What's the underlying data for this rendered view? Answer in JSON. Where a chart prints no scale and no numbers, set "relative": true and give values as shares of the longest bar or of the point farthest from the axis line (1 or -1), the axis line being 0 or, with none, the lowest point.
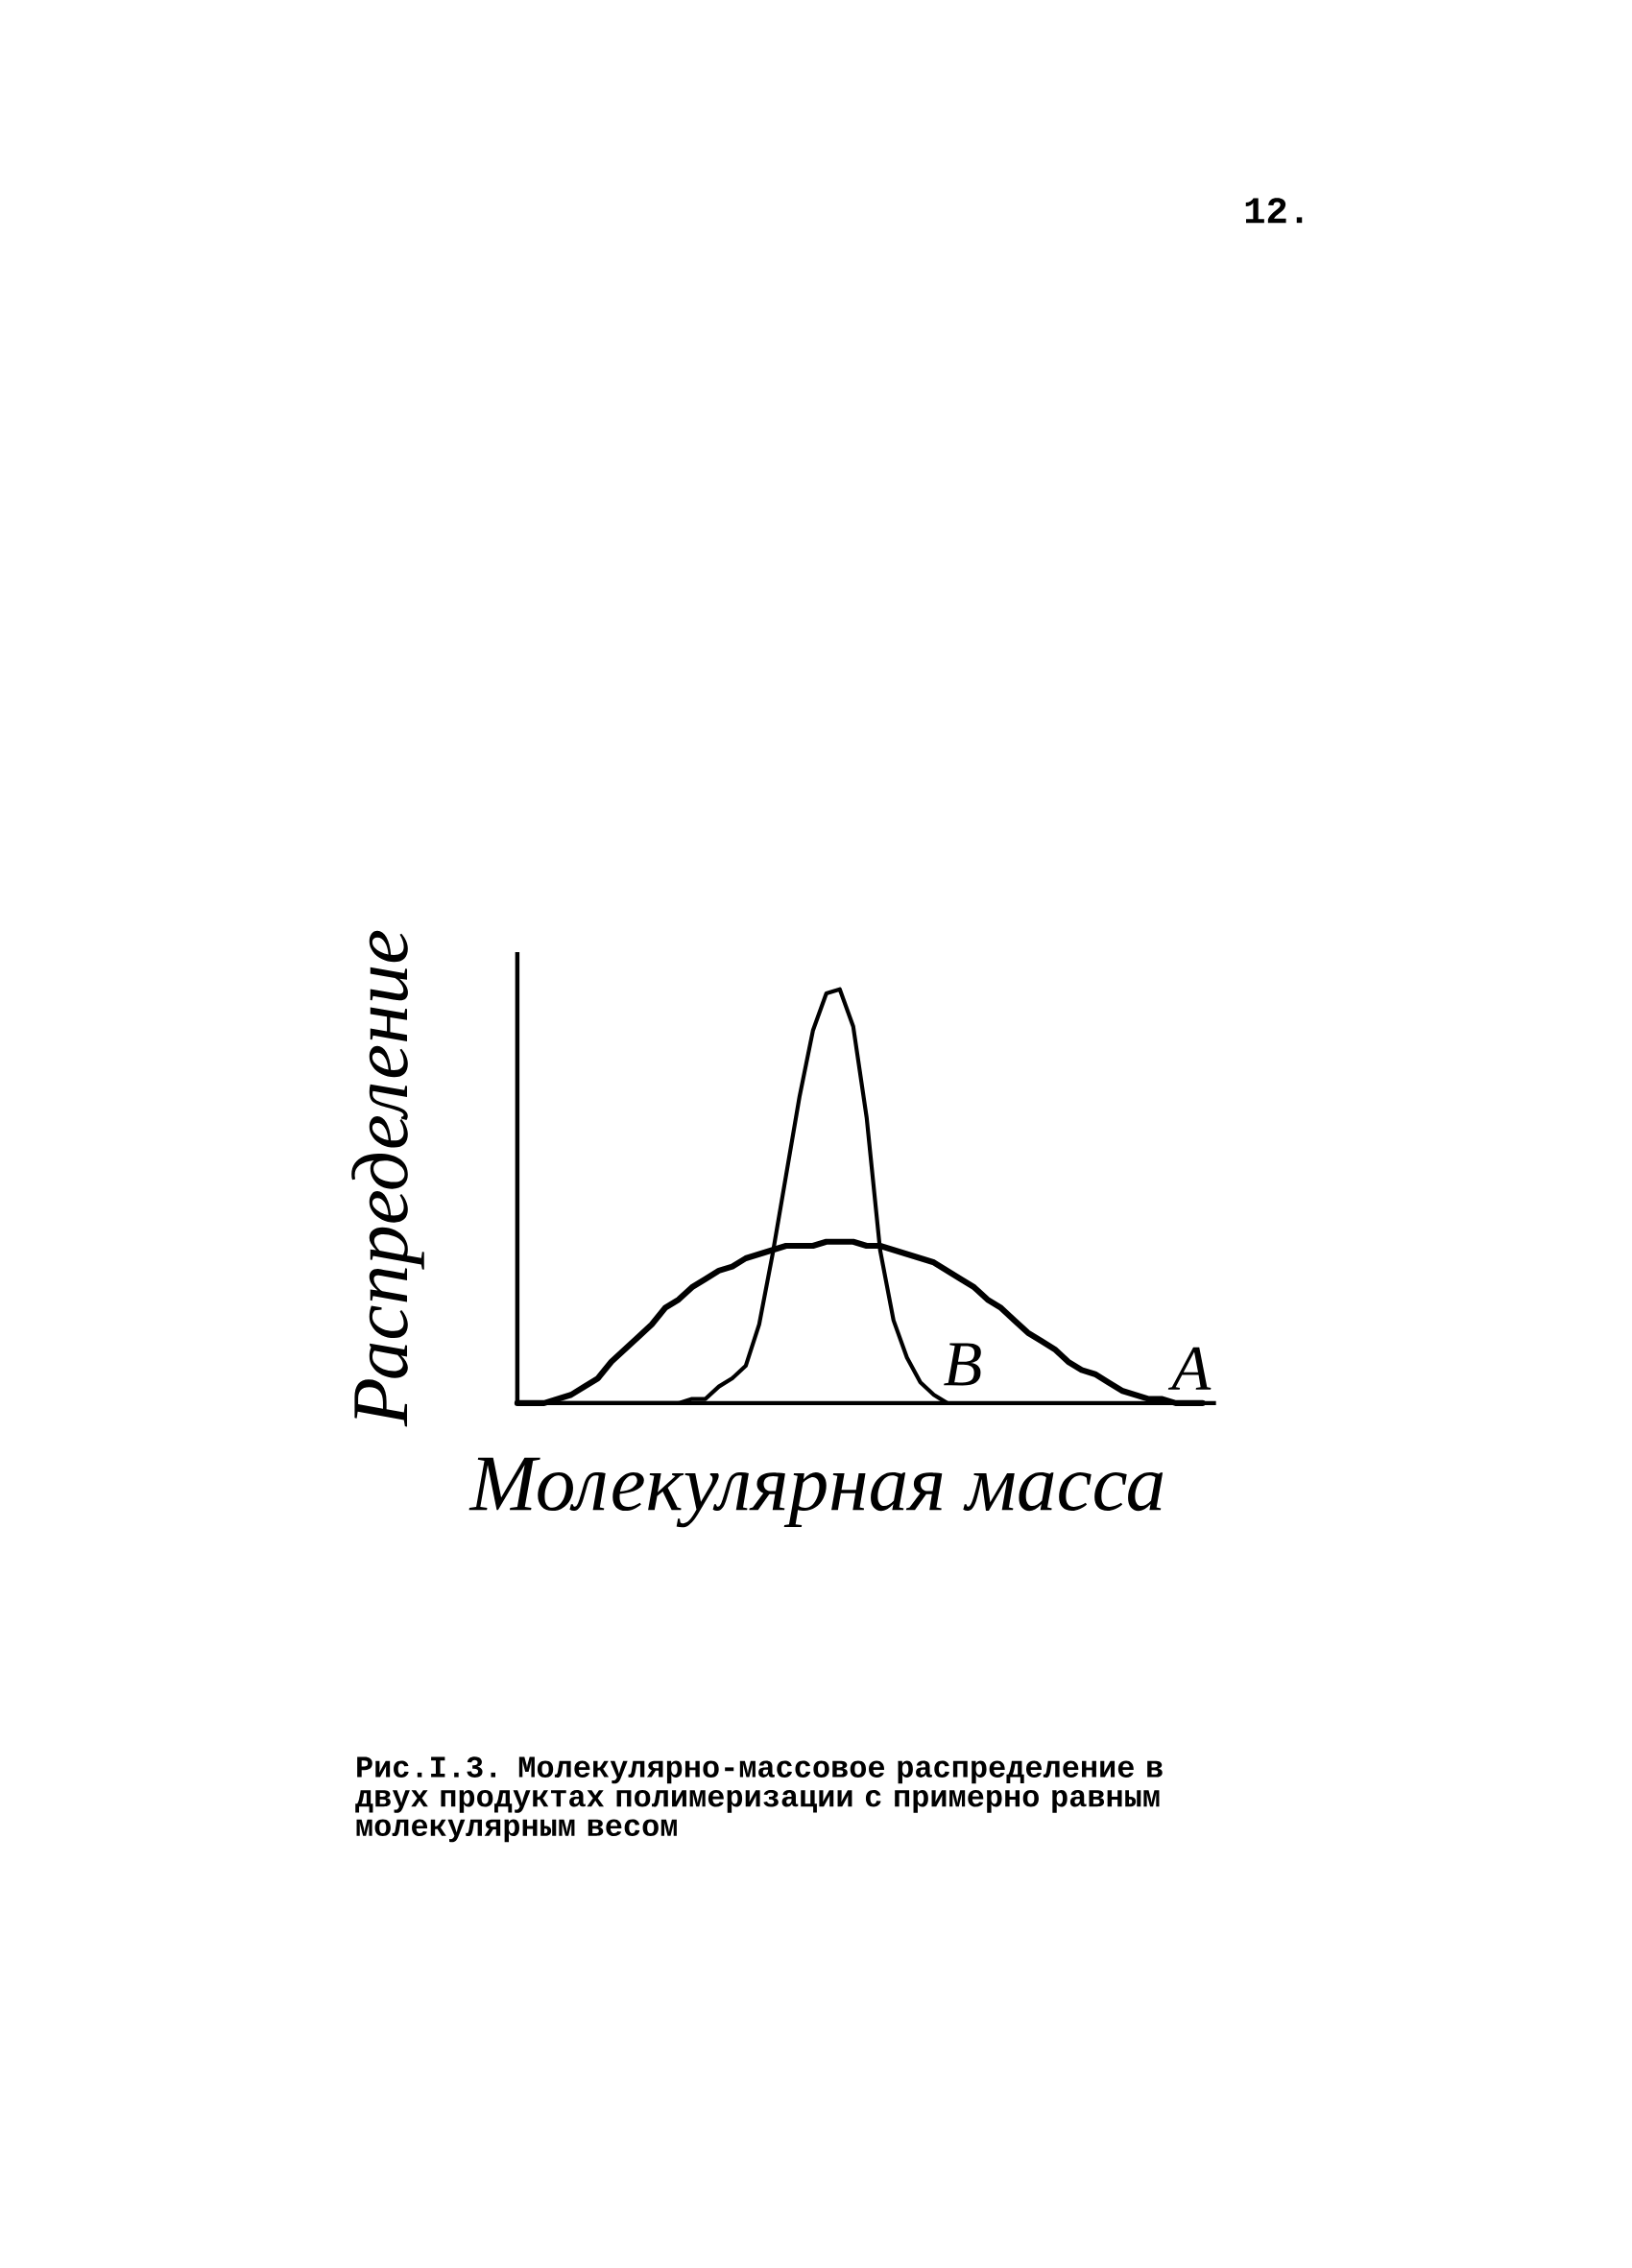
{
  "chart_data": {
    "type": "line",
    "relative": true,
    "xlabel": "Молекулярная масса",
    "ylabel": "Распределение",
    "annotations": [
      "12.",
      "Рис.I.3. Молекулярно-массовое распределение в двух продуктах полимеризации с примерно равным молекулярным весом"
    ],
    "categories": [
      null,
      null,
      null,
      null,
      null,
      null,
      null,
      null,
      null,
      null,
      null,
      null,
      null,
      null,
      null,
      null,
      null,
      null,
      null,
      null,
      null,
      null,
      null,
      null,
      null,
      null,
      null,
      null,
      null,
      null,
      null,
      null,
      null,
      null,
      null,
      null,
      null,
      null,
      null,
      null,
      null,
      null,
      null,
      null,
      null,
      null,
      null,
      null,
      null,
      null,
      null,
      null,
      null
    ],
    "series": [
      {
        "name": "A",
        "color": "#000000",
        "values": [
          0,
          0,
          0,
          0.01,
          0.02,
          0.04,
          0.06,
          0.1,
          0.13,
          0.16,
          0.19,
          0.23,
          0.25,
          0.28,
          0.3,
          0.32,
          0.33,
          0.35,
          0.36,
          0.37,
          0.38,
          0.38,
          0.38,
          0.39,
          0.39,
          0.39,
          0.38,
          0.38,
          0.37,
          0.36,
          0.35,
          0.34,
          0.32,
          0.3,
          0.28,
          0.25,
          0.23,
          0.2,
          0.17,
          0.15,
          0.13,
          0.1,
          0.08,
          0.07,
          0.05,
          0.03,
          0.02,
          0.01,
          0.01,
          0,
          0,
          0,
          null
        ]
      },
      {
        "name": "B",
        "color": "#000000",
        "values": [
          0,
          0,
          0,
          0,
          0,
          0,
          0,
          0,
          0,
          0,
          0,
          0,
          0,
          0.01,
          0.01,
          0.04,
          0.06,
          0.09,
          0.19,
          0.36,
          0.55,
          0.74,
          0.9,
          0.99,
          1.0,
          0.91,
          0.69,
          0.37,
          0.2,
          0.11,
          0.05,
          0.02,
          0,
          null,
          null,
          null,
          null,
          null,
          null,
          null,
          null,
          null,
          null,
          null,
          null,
          null,
          null,
          null,
          null,
          null,
          null,
          null,
          null
        ]
      }
    ]
  }
}
